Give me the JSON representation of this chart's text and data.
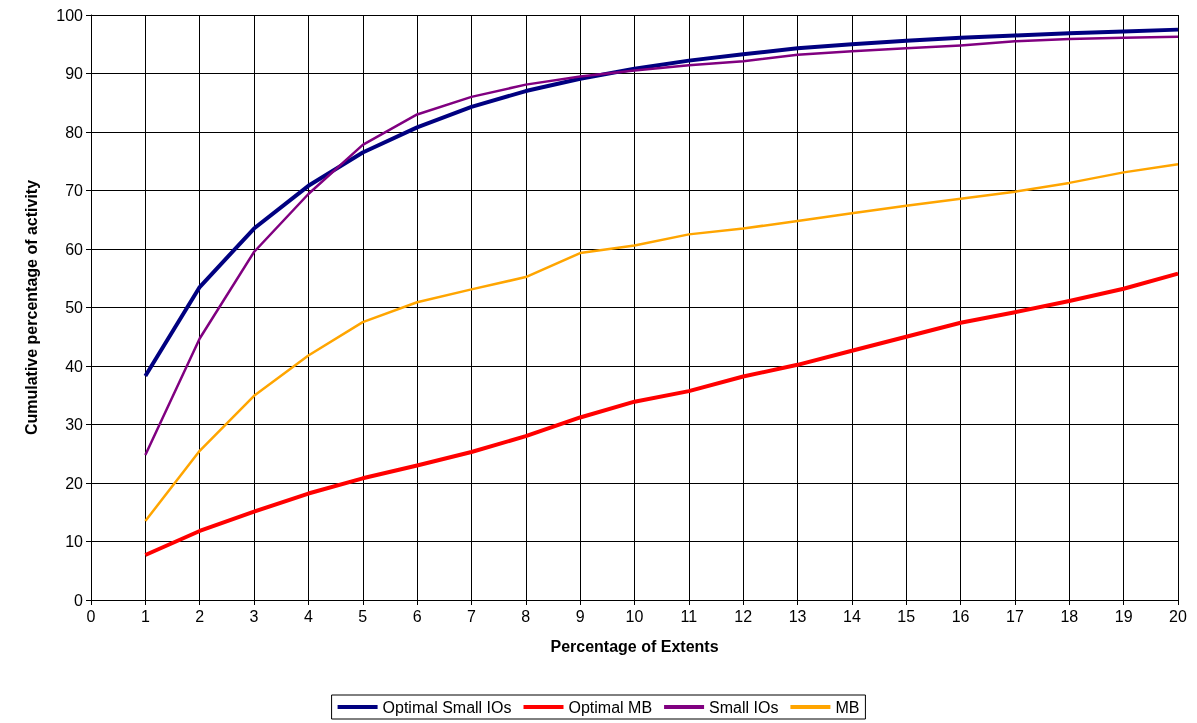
{
  "chart_data": {
    "type": "line",
    "xlabel": "Percentage of Extents",
    "ylabel": "Cumulative percentage of activity",
    "x": [
      1,
      2,
      3,
      4,
      5,
      6,
      7,
      8,
      9,
      10,
      11,
      12,
      13,
      14,
      15,
      16,
      17,
      18,
      19,
      20
    ],
    "series": [
      {
        "name": "Optimal Small IOs",
        "color": "#000080",
        "values": [
          38.3,
          53.5,
          63.5,
          70.8,
          76.5,
          80.8,
          84.3,
          87,
          89.1,
          90.8,
          92.2,
          93.3,
          94.3,
          95,
          95.6,
          96.1,
          96.5,
          96.9,
          97.2,
          97.5
        ]
      },
      {
        "name": "Optimal MB",
        "color": "#ff0000",
        "values": [
          7.7,
          11.8,
          15.1,
          18.2,
          20.8,
          23,
          25.3,
          28,
          31.2,
          33.9,
          35.7,
          38.2,
          40.2,
          42.6,
          45,
          47.4,
          49.2,
          51.1,
          53.2,
          55.8
        ]
      },
      {
        "name": "Small IOs",
        "color": "#800080",
        "values": [
          24.8,
          44.7,
          59.5,
          69.4,
          77.8,
          83,
          86,
          88.1,
          89.5,
          90.5,
          91.4,
          92.1,
          93.2,
          93.8,
          94.3,
          94.8,
          95.5,
          95.9,
          96.1,
          96.3
        ]
      },
      {
        "name": "MB",
        "color": "#ffa500",
        "values": [
          13.5,
          25.5,
          34.9,
          41.8,
          47.5,
          50.9,
          53.1,
          55.2,
          59.3,
          60.6,
          62.5,
          63.5,
          64.8,
          66.1,
          67.4,
          68.6,
          69.8,
          71.3,
          73.1,
          74.5
        ]
      }
    ],
    "xlim": [
      0,
      20
    ],
    "xticks": [
      0,
      1,
      2,
      3,
      4,
      5,
      6,
      7,
      8,
      9,
      10,
      11,
      12,
      13,
      14,
      15,
      16,
      17,
      18,
      19,
      20
    ],
    "ylim": [
      0,
      100
    ],
    "yticks": [
      0,
      10,
      20,
      30,
      40,
      50,
      60,
      70,
      80,
      90,
      100
    ],
    "grid": true,
    "legend": "bottom",
    "marker": "none",
    "line_style": "solid"
  }
}
